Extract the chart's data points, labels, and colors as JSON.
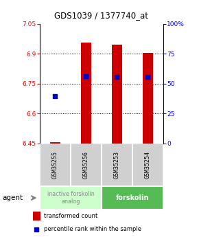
{
  "title": "GDS1039 / 1377740_at",
  "samples": [
    "GSM35255",
    "GSM35256",
    "GSM35253",
    "GSM35254"
  ],
  "bar_bottoms": [
    6.45,
    6.45,
    6.45,
    6.45
  ],
  "bar_tops": [
    6.456,
    6.955,
    6.945,
    6.905
  ],
  "bar_color": "#cc0000",
  "bar_width": 0.32,
  "blue_y": [
    6.685,
    6.785,
    6.782,
    6.782
  ],
  "blue_color": "#0000cc",
  "blue_size": 18,
  "ylim_left": [
    6.45,
    7.05
  ],
  "ylim_right": [
    0,
    100
  ],
  "yticks_left": [
    6.45,
    6.6,
    6.75,
    6.9,
    7.05
  ],
  "ytick_labels_left": [
    "6.45",
    "6.6",
    "6.75",
    "6.9",
    "7.05"
  ],
  "yticks_right": [
    0,
    25,
    50,
    75,
    100
  ],
  "ytick_labels_right": [
    "0",
    "25",
    "50",
    "75",
    "100%"
  ],
  "hlines": [
    6.6,
    6.75,
    6.9
  ],
  "group1_label": "inactive forskolin\nanalog",
  "group2_label": "forskolin",
  "group1_color": "#ccffcc",
  "group1_text_color": "#888888",
  "group2_color": "#55bb55",
  "group2_text_color": "#ffffff",
  "sample_box_color": "#d0d0d0",
  "legend_bar_label": "transformed count",
  "legend_dot_label": "percentile rank within the sample",
  "agent_label": "agent",
  "background_color": "#ffffff"
}
